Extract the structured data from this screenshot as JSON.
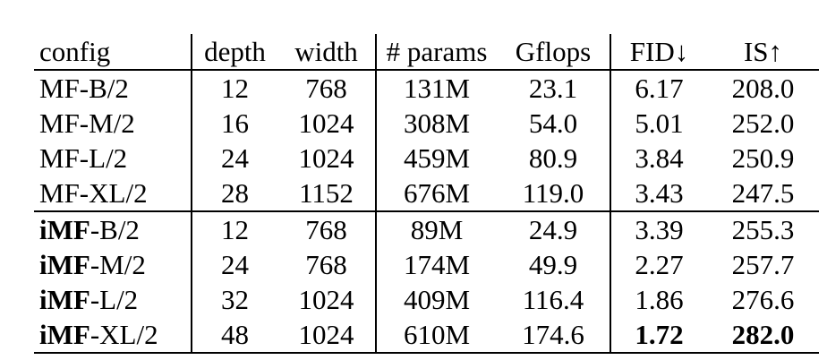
{
  "page": {
    "background": "#ffffff",
    "text_color": "#000000"
  },
  "table": {
    "columns": [
      {
        "label": "config",
        "align": "left"
      },
      {
        "label": "depth",
        "align": "center"
      },
      {
        "label": "width",
        "align": "center"
      },
      {
        "label": "# params",
        "align": "center"
      },
      {
        "label": "Gflops",
        "align": "center"
      },
      {
        "label": "FID↓",
        "align": "center"
      },
      {
        "label": "IS↑",
        "align": "center"
      }
    ],
    "groups": [
      {
        "name": "MF",
        "rows": [
          {
            "config_bold": "",
            "config_rest": "MF-B/2",
            "depth": "12",
            "width": "768",
            "params": "131M",
            "gflops": "23.1",
            "fid": "6.17",
            "is": "208.0",
            "fid_bold": false,
            "is_bold": false
          },
          {
            "config_bold": "",
            "config_rest": "MF-M/2",
            "depth": "16",
            "width": "1024",
            "params": "308M",
            "gflops": "54.0",
            "fid": "5.01",
            "is": "252.0",
            "fid_bold": false,
            "is_bold": false
          },
          {
            "config_bold": "",
            "config_rest": "MF-L/2",
            "depth": "24",
            "width": "1024",
            "params": "459M",
            "gflops": "80.9",
            "fid": "3.84",
            "is": "250.9",
            "fid_bold": false,
            "is_bold": false
          },
          {
            "config_bold": "",
            "config_rest": "MF-XL/2",
            "depth": "28",
            "width": "1152",
            "params": "676M",
            "gflops": "119.0",
            "fid": "3.43",
            "is": "247.5",
            "fid_bold": false,
            "is_bold": false
          }
        ]
      },
      {
        "name": "iMF",
        "rows": [
          {
            "config_bold": "iMF",
            "config_rest": "-B/2",
            "depth": "12",
            "width": "768",
            "params": "89M",
            "gflops": "24.9",
            "fid": "3.39",
            "is": "255.3",
            "fid_bold": false,
            "is_bold": false
          },
          {
            "config_bold": "iMF",
            "config_rest": "-M/2",
            "depth": "24",
            "width": "768",
            "params": "174M",
            "gflops": "49.9",
            "fid": "2.27",
            "is": "257.7",
            "fid_bold": false,
            "is_bold": false
          },
          {
            "config_bold": "iMF",
            "config_rest": "-L/2",
            "depth": "32",
            "width": "1024",
            "params": "409M",
            "gflops": "116.4",
            "fid": "1.86",
            "is": "276.6",
            "fid_bold": false,
            "is_bold": false
          },
          {
            "config_bold": "iMF",
            "config_rest": "-XL/2",
            "depth": "48",
            "width": "1024",
            "params": "610M",
            "gflops": "174.6",
            "fid": "1.72",
            "is": "282.0",
            "fid_bold": true,
            "is_bold": true
          }
        ]
      }
    ]
  }
}
